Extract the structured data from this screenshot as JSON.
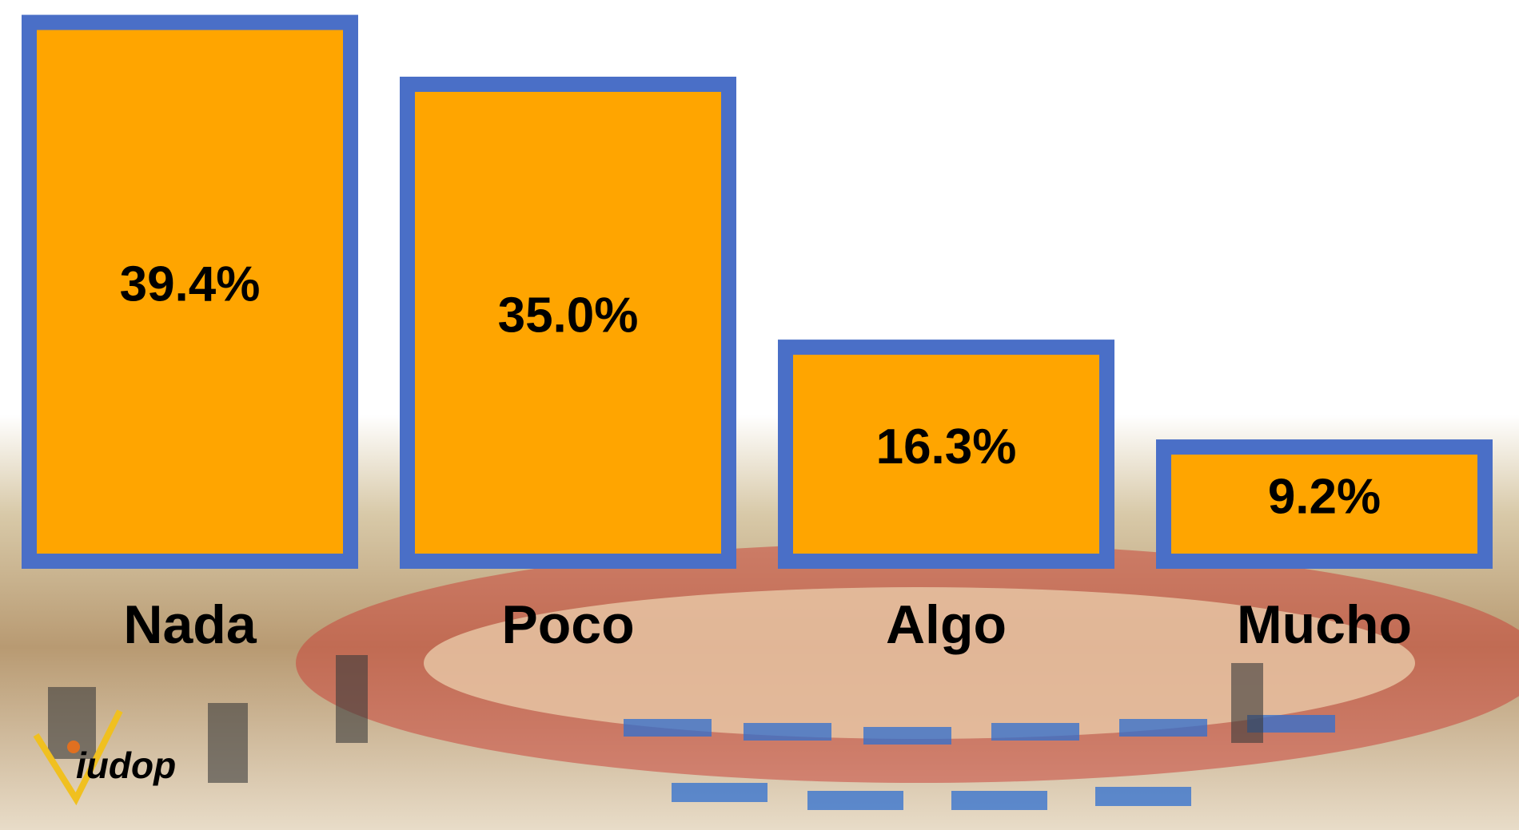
{
  "chart_data": {
    "type": "bar",
    "categories": [
      "Nada",
      "Poco",
      "Algo",
      "Mucho"
    ],
    "values": [
      39.4,
      35.0,
      16.3,
      9.2
    ],
    "value_labels": [
      "39.4%",
      "35.0%",
      "16.3%",
      "9.2%"
    ],
    "color": "#ffa500",
    "edge_color": "#4a6fc7"
  },
  "logo": "iudop"
}
